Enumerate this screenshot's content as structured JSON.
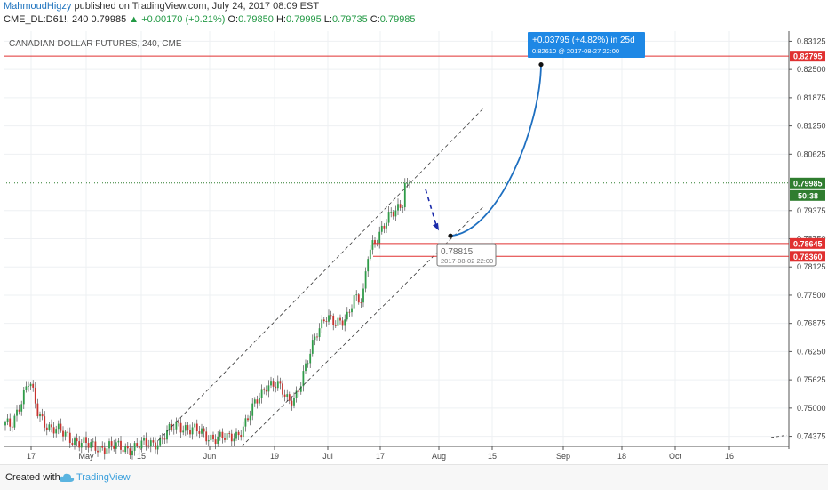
{
  "header": {
    "author": "MahmoudHigzy",
    "published_text": "published on TradingView.com, July 24, 2017 08:09 EST",
    "ticker": "CME_DL:D61!, 240",
    "last": "0.79985",
    "change": "+0.00170 (+0.21%)",
    "ohlc": {
      "o_label": "O:",
      "o": "0.79850",
      "h_label": "H:",
      "h": "0.79995",
      "l_label": "L:",
      "l": "0.79735",
      "c_label": "C:",
      "c": "0.79985"
    }
  },
  "chart_data": {
    "type": "candlestick",
    "title": "CANADIAN DOLLAR FUTURES, 240, CME",
    "y_ticks": [
      "0.83125",
      "0.82500",
      "0.81875",
      "0.81250",
      "0.80625",
      "0.79375",
      "0.78750",
      "0.78125",
      "0.77500",
      "0.76875",
      "0.76250",
      "0.75625",
      "0.75000",
      "0.74375"
    ],
    "y_range": [
      0.7415,
      0.8335
    ],
    "x_ticks": [
      "17",
      "May",
      "15",
      "Jun",
      "19",
      "Jul",
      "17",
      "Aug",
      "15",
      "Sep",
      "18",
      "Oct",
      "16"
    ],
    "price_labels": [
      {
        "value": 0.82795,
        "text": "0.82795",
        "color": "#e03030"
      },
      {
        "value": 0.79985,
        "text": "0.79985",
        "color": "#2f7d2f"
      },
      {
        "value": 0.78645,
        "text": "0.78645",
        "color": "#e03030"
      },
      {
        "value": 0.7836,
        "text": "0.78360",
        "color": "#e03030"
      }
    ],
    "countdown": "50:38",
    "horizontal_lines": [
      {
        "value": 0.82795,
        "style": "solid",
        "color": "#e03030"
      },
      {
        "value": 0.79985,
        "style": "dotted",
        "color": "#2f7d2f"
      },
      {
        "value": 0.78645,
        "style": "solid",
        "color": "#e03030"
      },
      {
        "value": 0.7836,
        "style": "solid",
        "color": "#e03030"
      }
    ],
    "projection": {
      "line1": "+0.03795 (+4.82%) in 25d",
      "line2": "0.82610  @ 2017-08-27  22:00",
      "start_value": 0.78815,
      "end_value": 0.8261
    },
    "note": {
      "price": "0.78815",
      "date": "2017-08-02 22:00"
    },
    "grid": true
  },
  "footer": {
    "created": "Created with",
    "brand": "TradingView"
  }
}
